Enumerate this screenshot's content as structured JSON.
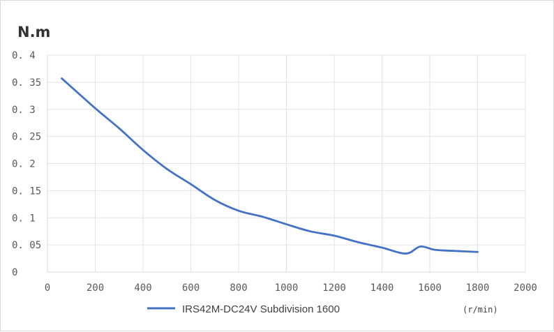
{
  "chart_data": {
    "type": "line",
    "title": "",
    "ylabel": "N.m",
    "xlabel": "(r/min)",
    "xlim": [
      0,
      2000
    ],
    "ylim": [
      0,
      0.4
    ],
    "xticks": [
      0,
      200,
      400,
      600,
      800,
      1000,
      1200,
      1400,
      1600,
      1800,
      2000
    ],
    "yticks": [
      0,
      0.05,
      0.1,
      0.15,
      0.2,
      0.25,
      0.3,
      0.35,
      0.4
    ],
    "ytick_labels": [
      "0",
      "0. 05",
      "0. 1",
      "0. 15",
      "0. 2",
      "0. 25",
      "0. 3",
      "0. 35",
      "0. 4"
    ],
    "grid": true,
    "legend_position": "bottom",
    "series": [
      {
        "name": "IRS42M-DC24V Subdivision 1600",
        "color": "#4472C4",
        "x": [
          60,
          200,
          300,
          400,
          500,
          600,
          700,
          800,
          900,
          1000,
          1100,
          1200,
          1300,
          1400,
          1500,
          1560,
          1620,
          1700,
          1800
        ],
        "y": [
          0.357,
          0.302,
          0.265,
          0.225,
          0.19,
          0.162,
          0.133,
          0.113,
          0.102,
          0.088,
          0.075,
          0.067,
          0.055,
          0.045,
          0.034,
          0.047,
          0.041,
          0.039,
          0.037
        ]
      }
    ]
  }
}
